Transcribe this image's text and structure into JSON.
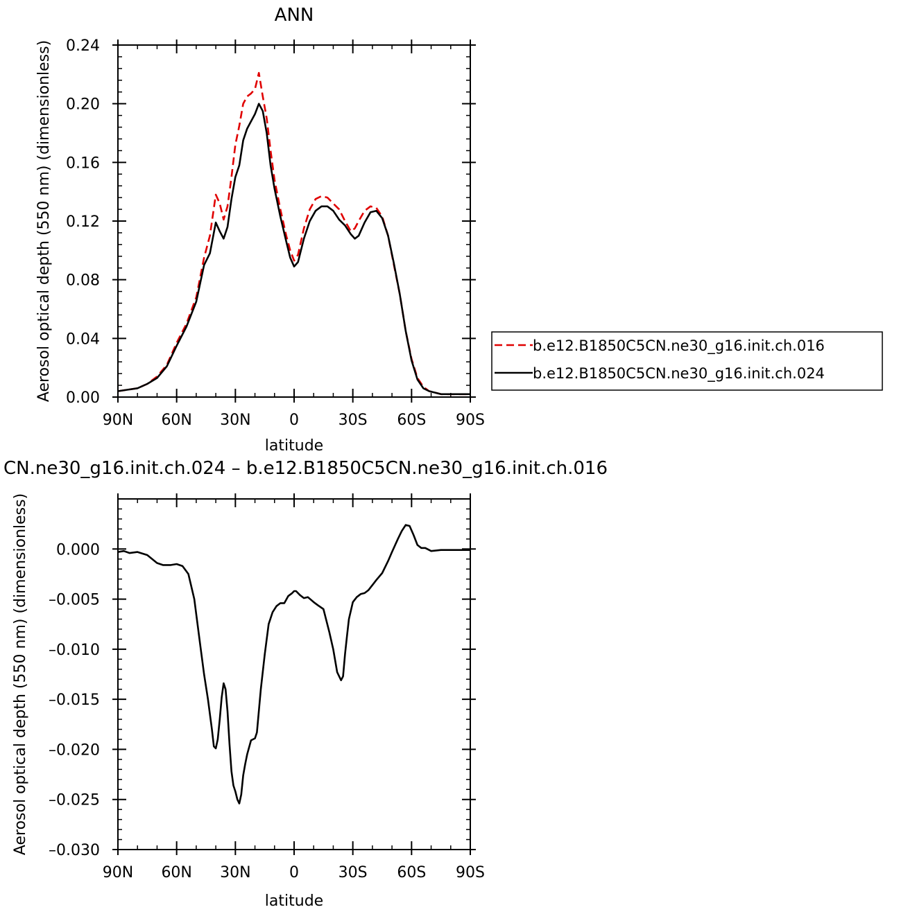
{
  "chart_data": [
    {
      "type": "line",
      "title": "ANN",
      "xlabel": "latitude",
      "ylabel": "Aerosol optical depth (550 nm) (dimensionless)",
      "xlim": [
        90,
        -90
      ],
      "ylim": [
        0,
        0.24
      ],
      "x_ticks": [
        {
          "value": 90,
          "label": "90N"
        },
        {
          "value": 60,
          "label": "60N"
        },
        {
          "value": 30,
          "label": "30N"
        },
        {
          "value": 0,
          "label": "0"
        },
        {
          "value": -30,
          "label": "30S"
        },
        {
          "value": -60,
          "label": "60S"
        },
        {
          "value": -90,
          "label": "90S"
        }
      ],
      "y_ticks": [
        {
          "value": 0.0,
          "label": "0.00"
        },
        {
          "value": 0.04,
          "label": "0.04"
        },
        {
          "value": 0.08,
          "label": "0.08"
        },
        {
          "value": 0.12,
          "label": "0.12"
        },
        {
          "value": 0.16,
          "label": "0.16"
        },
        {
          "value": 0.2,
          "label": "0.20"
        },
        {
          "value": 0.24,
          "label": "0.24"
        }
      ],
      "legend": "right",
      "series": [
        {
          "name": "b.e12.B1850C5CN.ne30_g16.init.ch.016",
          "color": "#e00000",
          "dash": "dashed",
          "x": [
            90,
            85,
            80,
            75,
            70,
            65,
            60,
            55,
            50,
            46,
            43,
            40,
            38,
            36,
            34,
            32,
            30,
            28,
            26,
            24,
            22,
            20,
            18,
            16,
            14,
            12,
            10,
            7,
            4,
            2,
            0,
            -2,
            -5,
            -8,
            -11,
            -14,
            -17,
            -20,
            -23,
            -26,
            -29,
            -31,
            -33,
            -36,
            -39,
            -42,
            -45,
            -48,
            -51,
            -54,
            -57,
            -60,
            -63,
            -66,
            -69,
            -72,
            -75,
            -80,
            -85,
            -90
          ],
          "y": [
            0.004,
            0.005,
            0.006,
            0.009,
            0.014,
            0.022,
            0.037,
            0.05,
            0.068,
            0.095,
            0.11,
            0.138,
            0.132,
            0.121,
            0.13,
            0.15,
            0.172,
            0.185,
            0.2,
            0.205,
            0.207,
            0.21,
            0.221,
            0.205,
            0.19,
            0.168,
            0.148,
            0.128,
            0.11,
            0.1,
            0.093,
            0.097,
            0.115,
            0.128,
            0.135,
            0.137,
            0.136,
            0.132,
            0.128,
            0.12,
            0.113,
            0.115,
            0.12,
            0.127,
            0.13,
            0.129,
            0.123,
            0.11,
            0.09,
            0.07,
            0.045,
            0.026,
            0.013,
            0.007,
            0.004,
            0.003,
            0.002,
            0.002,
            0.002,
            0.002
          ]
        },
        {
          "name": "b.e12.B1850C5CN.ne30_g16.init.ch.024",
          "color": "#000000",
          "dash": "solid",
          "x": [
            90,
            85,
            80,
            75,
            70,
            65,
            60,
            55,
            50,
            46,
            43,
            40,
            38,
            36,
            34,
            32,
            30,
            28,
            26,
            24,
            22,
            20,
            18,
            16,
            14,
            12,
            10,
            7,
            4,
            2,
            0,
            -2,
            -5,
            -8,
            -11,
            -14,
            -17,
            -20,
            -23,
            -26,
            -29,
            -31,
            -33,
            -36,
            -39,
            -42,
            -45,
            -48,
            -51,
            -54,
            -57,
            -60,
            -63,
            -66,
            -69,
            -72,
            -75,
            -80,
            -85,
            -90
          ],
          "y": [
            0.004,
            0.005,
            0.006,
            0.009,
            0.013,
            0.021,
            0.035,
            0.048,
            0.065,
            0.09,
            0.098,
            0.119,
            0.113,
            0.108,
            0.116,
            0.135,
            0.15,
            0.158,
            0.175,
            0.183,
            0.188,
            0.193,
            0.2,
            0.195,
            0.18,
            0.158,
            0.142,
            0.123,
            0.106,
            0.095,
            0.089,
            0.092,
            0.108,
            0.12,
            0.127,
            0.13,
            0.13,
            0.127,
            0.121,
            0.117,
            0.111,
            0.108,
            0.11,
            0.119,
            0.126,
            0.127,
            0.122,
            0.11,
            0.091,
            0.07,
            0.045,
            0.025,
            0.012,
            0.006,
            0.004,
            0.003,
            0.002,
            0.002,
            0.002,
            0.002
          ]
        }
      ]
    },
    {
      "type": "line",
      "title": "CN.ne30_g16.init.ch.024 – b.e12.B1850C5CN.ne30_g16.init.ch.016",
      "xlabel": "latitude",
      "ylabel": "Aerosol optical depth (550 nm) (dimensionless)",
      "xlim": [
        90,
        -90
      ],
      "ylim": [
        -0.03,
        0.005
      ],
      "x_ticks": [
        {
          "value": 90,
          "label": "90N"
        },
        {
          "value": 60,
          "label": "60N"
        },
        {
          "value": 30,
          "label": "30N"
        },
        {
          "value": 0,
          "label": "0"
        },
        {
          "value": -30,
          "label": "30S"
        },
        {
          "value": -60,
          "label": "60S"
        },
        {
          "value": -90,
          "label": "90S"
        }
      ],
      "y_ticks": [
        {
          "value": 0.0,
          "label": "0.000"
        },
        {
          "value": -0.005,
          "label": "–0.005"
        },
        {
          "value": -0.01,
          "label": "–0.010"
        },
        {
          "value": -0.015,
          "label": "–0.015"
        },
        {
          "value": -0.02,
          "label": "–0.020"
        },
        {
          "value": -0.025,
          "label": "–0.025"
        },
        {
          "value": -0.03,
          "label": "–0.030"
        }
      ],
      "series": [
        {
          "color": "#000000",
          "dash": "solid",
          "x": [
            90,
            87,
            84,
            80,
            75,
            70,
            67,
            63,
            60,
            57,
            54,
            51,
            48,
            46,
            44,
            42,
            41,
            40,
            39,
            38,
            37,
            36,
            35,
            34,
            33,
            32,
            31,
            30,
            29,
            28,
            27,
            26,
            25,
            24,
            22,
            20,
            19,
            17,
            15,
            13,
            11,
            9,
            7,
            5,
            3,
            1,
            0,
            -1,
            -3,
            -5,
            -7,
            -10,
            -12,
            -15,
            -18,
            -20,
            -22,
            -24,
            -25,
            -26,
            -27,
            -28,
            -30,
            -32,
            -34,
            -36,
            -38,
            -40,
            -42,
            -45,
            -48,
            -50,
            -53,
            -55,
            -57,
            -59,
            -61,
            -63,
            -65,
            -67,
            -70,
            -75,
            -80,
            -85,
            -90
          ],
          "y": [
            -0.0003,
            -0.0002,
            -0.0004,
            -0.0003,
            -0.0006,
            -0.0014,
            -0.0016,
            -0.0016,
            -0.0015,
            -0.0017,
            -0.0025,
            -0.005,
            -0.0095,
            -0.0125,
            -0.015,
            -0.018,
            -0.0197,
            -0.0199,
            -0.019,
            -0.017,
            -0.0148,
            -0.0134,
            -0.014,
            -0.0162,
            -0.0195,
            -0.0222,
            -0.0236,
            -0.0242,
            -0.025,
            -0.0254,
            -0.0245,
            -0.0226,
            -0.0215,
            -0.0205,
            -0.0191,
            -0.0189,
            -0.0183,
            -0.014,
            -0.0105,
            -0.0075,
            -0.0063,
            -0.0057,
            -0.0054,
            -0.0054,
            -0.0047,
            -0.0044,
            -0.0042,
            -0.0042,
            -0.0046,
            -0.0049,
            -0.0048,
            -0.0053,
            -0.0056,
            -0.006,
            -0.0083,
            -0.01,
            -0.0123,
            -0.0131,
            -0.0127,
            -0.0105,
            -0.0087,
            -0.007,
            -0.0053,
            -0.0048,
            -0.0045,
            -0.0044,
            -0.0041,
            -0.0036,
            -0.0031,
            -0.0024,
            -0.0012,
            -0.0003,
            0.001,
            0.0018,
            0.0024,
            0.0023,
            0.0014,
            0.0004,
            0.0001,
            0.0001,
            -0.0002,
            -0.0001,
            -0.0001,
            -0.0001,
            -0.0001
          ]
        }
      ]
    }
  ]
}
